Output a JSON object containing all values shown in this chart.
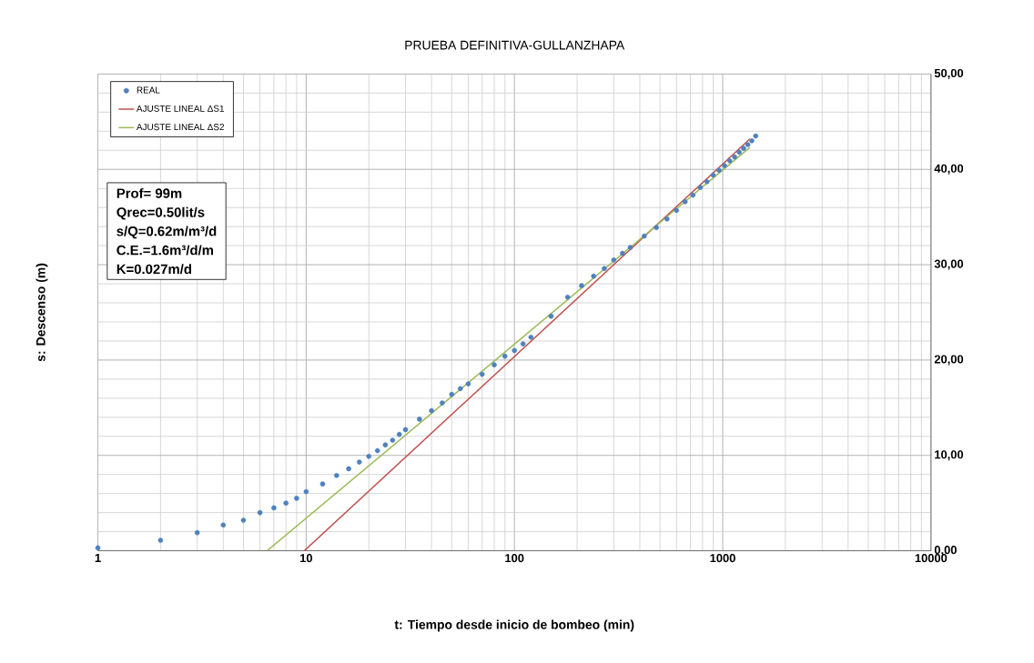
{
  "chart_data": {
    "type": "scatter",
    "title": "PRUEBA DEFINITIVA-GULLANZHAPA",
    "xlabel": "t: Tiempo desde inicio de bombeo (min)",
    "ylabel": "s: Descenso (m)",
    "log": "x",
    "grid": true,
    "legend": "top left",
    "xlim": [
      1,
      10000
    ],
    "ylim": [
      0,
      50
    ],
    "xticks": [
      1,
      10,
      100,
      1000,
      10000
    ],
    "yticks": [
      {
        "value": 0,
        "label": "0,00"
      },
      {
        "value": 10,
        "label": "10,00"
      },
      {
        "value": 20,
        "label": "20,00"
      },
      {
        "value": 30,
        "label": "30,00"
      },
      {
        "value": 40,
        "label": "40,00"
      },
      {
        "value": 50,
        "label": "50,00"
      }
    ],
    "annotations": [
      "Prof= 99m",
      "Qrec=0.50lit/s",
      "s/Q=0.62m/m³/d",
      "C.E.=1.6m³/d/m",
      "K=0.027m/d"
    ],
    "series": [
      {
        "name": "REAL",
        "marker": "circle",
        "color": "#4f81bd",
        "x": [
          1,
          2,
          3,
          4,
          5,
          6,
          7,
          8,
          9,
          10,
          12,
          14,
          16,
          18,
          20,
          22,
          24,
          26,
          28,
          30,
          35,
          40,
          45,
          50,
          55,
          60,
          70,
          80,
          90,
          100,
          110,
          120,
          150,
          180,
          210,
          240,
          270,
          300,
          330,
          360,
          420,
          480,
          540,
          600,
          660,
          720,
          780,
          840,
          900,
          960,
          1020,
          1080,
          1140,
          1200,
          1260,
          1320,
          1380,
          1440
        ],
        "values": [
          0.3,
          1.1,
          1.9,
          2.7,
          3.2,
          4.0,
          4.5,
          5.0,
          5.5,
          6.2,
          7.0,
          7.9,
          8.6,
          9.3,
          9.9,
          10.5,
          11.1,
          11.6,
          12.2,
          12.7,
          13.8,
          14.7,
          15.5,
          16.4,
          17.0,
          17.5,
          18.5,
          19.5,
          20.4,
          21.0,
          21.7,
          22.4,
          24.6,
          26.6,
          27.8,
          28.8,
          29.6,
          30.5,
          31.2,
          31.8,
          33.0,
          33.9,
          34.8,
          35.7,
          36.6,
          37.3,
          38.1,
          38.7,
          39.4,
          39.9,
          40.4,
          40.9,
          41.3,
          41.8,
          42.2,
          42.6,
          43.0,
          43.5
        ]
      },
      {
        "name": "AJUSTE LINEAL ΔS1",
        "type": "line",
        "marker": "none",
        "line_style": "solid",
        "color": "#c0504d",
        "x": [
          9.8,
          1350
        ],
        "values": [
          0,
          43.2
        ]
      },
      {
        "name": "AJUSTE LINEAL ΔS2",
        "type": "line",
        "marker": "none",
        "line_style": "solid",
        "color": "#9bbb59",
        "x": [
          6.5,
          1350
        ],
        "values": [
          0,
          42.3
        ]
      }
    ]
  }
}
